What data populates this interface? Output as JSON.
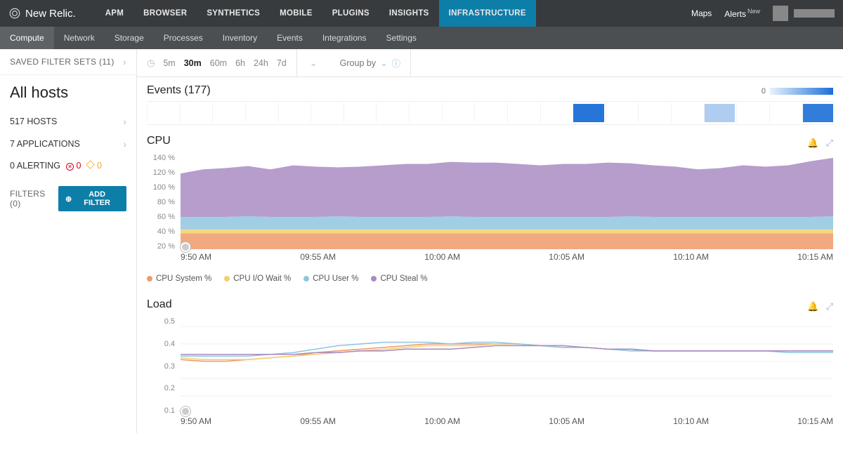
{
  "brand": "New Relic.",
  "topnav": {
    "tabs": [
      "APM",
      "BROWSER",
      "SYNTHETICS",
      "MOBILE",
      "PLUGINS",
      "INSIGHTS",
      "INFRASTRUCTURE"
    ],
    "active": "INFRASTRUCTURE",
    "maps": "Maps",
    "alerts": "Alerts",
    "alerts_badge": "New"
  },
  "subnav": {
    "tabs": [
      "Compute",
      "Network",
      "Storage",
      "Processes",
      "Inventory",
      "Events",
      "Integrations",
      "Settings"
    ],
    "active": "Compute"
  },
  "sidebar": {
    "saved_filter_sets": "SAVED FILTER SETS (11)",
    "title": "All hosts",
    "hosts": "517 HOSTS",
    "apps": "7 APPLICATIONS",
    "alerting_label": "0 ALERTING",
    "alerting_red": "0",
    "alerting_yellow": "0",
    "filters_label": "FILTERS (0)",
    "add_filter": "ADD FILTER"
  },
  "toolbar": {
    "time_options": [
      "5m",
      "30m",
      "60m",
      "6h",
      "24h",
      "7d"
    ],
    "time_active": "30m",
    "group_by": "Group by"
  },
  "events": {
    "title": "Events (177)",
    "legend_zero": "0",
    "cells": [
      0,
      0,
      0,
      0,
      0,
      0,
      0,
      0,
      0,
      0,
      0,
      0,
      0,
      0.95,
      0,
      0,
      0,
      0.35,
      0,
      0,
      0.9
    ],
    "color_low": "#ffffff",
    "color_high": "#1b6fd8"
  },
  "cpu": {
    "title": "CPU",
    "type": "area-stacked",
    "y_ticks": [
      "140 %",
      "120 %",
      "100 %",
      "80 %",
      "60 %",
      "40 %",
      "20 %"
    ],
    "x_ticks": [
      "9:50 AM",
      "09:55 AM",
      "10:00 AM",
      "10:05 AM",
      "10:10 AM",
      "10:15 AM"
    ],
    "ylim": [
      0,
      140
    ],
    "series": [
      {
        "name": "CPU System %",
        "color": "#f19a6a",
        "values": [
          24,
          24,
          24,
          24,
          24,
          24,
          24,
          24,
          24,
          24,
          24,
          24,
          24,
          24,
          24,
          24,
          24,
          24,
          24,
          24,
          24,
          24,
          24,
          24,
          24,
          24,
          24,
          24,
          24,
          24
        ]
      },
      {
        "name": "CPU I/O Wait %",
        "color": "#f3cf6d",
        "values": [
          6,
          6,
          6,
          6,
          6,
          6,
          6,
          6,
          6,
          6,
          6,
          6,
          6,
          6,
          6,
          6,
          6,
          6,
          6,
          6,
          6,
          6,
          6,
          6,
          6,
          6,
          6,
          6,
          6,
          6
        ]
      },
      {
        "name": "CPU User %",
        "color": "#8fc6e1",
        "values": [
          18,
          18,
          18,
          19,
          18,
          18,
          18,
          19,
          18,
          18,
          18,
          18,
          19,
          18,
          18,
          18,
          18,
          18,
          18,
          18,
          19,
          18,
          18,
          18,
          18,
          18,
          18,
          18,
          18,
          19
        ]
      },
      {
        "name": "CPU Steal %",
        "color": "#a98cc3",
        "values": [
          64,
          70,
          72,
          74,
          70,
          76,
          74,
          72,
          74,
          76,
          78,
          78,
          80,
          80,
          80,
          78,
          76,
          78,
          78,
          80,
          78,
          76,
          74,
          70,
          72,
          76,
          74,
          76,
          82,
          86
        ]
      }
    ],
    "legend": [
      {
        "label": "CPU System %",
        "color": "#f19a6a"
      },
      {
        "label": "CPU I/O Wait %",
        "color": "#f3cf6d"
      },
      {
        "label": "CPU User %",
        "color": "#8fc6e1"
      },
      {
        "label": "CPU Steal %",
        "color": "#a98cc3"
      }
    ]
  },
  "load": {
    "title": "Load",
    "type": "line",
    "y_ticks": [
      "0.5",
      "0.4",
      "0.3",
      "0.2",
      "0.1"
    ],
    "x_ticks": [
      "9:50 AM",
      "09:55 AM",
      "10:00 AM",
      "10:05 AM",
      "10:10 AM",
      "10:15 AM"
    ],
    "ylim": [
      0,
      0.55
    ],
    "series": [
      {
        "color": "#f19a6a",
        "values": [
          0.31,
          0.3,
          0.3,
          0.31,
          0.32,
          0.33,
          0.35,
          0.36,
          0.37,
          0.38,
          0.39,
          0.4,
          0.4,
          0.4,
          0.4,
          0.4,
          0.39,
          0.38,
          0.38,
          0.37,
          0.37,
          0.36,
          0.36,
          0.36,
          0.36,
          0.36,
          0.36,
          0.36,
          0.36,
          0.36
        ]
      },
      {
        "color": "#f3cf6d",
        "values": [
          0.32,
          0.31,
          0.31,
          0.31,
          0.32,
          0.33,
          0.34,
          0.35,
          0.36,
          0.37,
          0.38,
          0.39,
          0.39,
          0.39,
          0.4,
          0.4,
          0.39,
          0.38,
          0.38,
          0.37,
          0.37,
          0.36,
          0.36,
          0.36,
          0.36,
          0.36,
          0.36,
          0.36,
          0.36,
          0.36
        ]
      },
      {
        "color": "#8fc6e1",
        "values": [
          0.33,
          0.33,
          0.33,
          0.33,
          0.34,
          0.35,
          0.37,
          0.39,
          0.4,
          0.41,
          0.41,
          0.41,
          0.4,
          0.41,
          0.41,
          0.4,
          0.39,
          0.38,
          0.38,
          0.37,
          0.36,
          0.36,
          0.36,
          0.36,
          0.36,
          0.36,
          0.36,
          0.35,
          0.35,
          0.35
        ]
      },
      {
        "color": "#a98cc3",
        "values": [
          0.34,
          0.34,
          0.34,
          0.34,
          0.34,
          0.34,
          0.35,
          0.35,
          0.36,
          0.36,
          0.37,
          0.37,
          0.37,
          0.38,
          0.39,
          0.39,
          0.39,
          0.39,
          0.38,
          0.37,
          0.37,
          0.36,
          0.36,
          0.36,
          0.36,
          0.36,
          0.36,
          0.36,
          0.36,
          0.36
        ]
      }
    ]
  },
  "colors": {
    "accent": "#0d7ea8",
    "red": "#d0021b",
    "yellow": "#f5a623"
  }
}
